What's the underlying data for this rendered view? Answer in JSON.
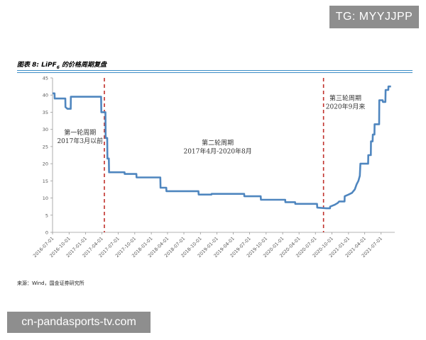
{
  "watermarks": {
    "top": "TG: MYYJJPP",
    "bottom": "cn-pandasports-tv.com"
  },
  "figure": {
    "title_prefix": "图表 8: LiPF",
    "title_sub": "6",
    "title_suffix": " 的价格周期复盘",
    "source": "来源：Wind，国金证券研究所"
  },
  "colors": {
    "line": "#4f86bf",
    "divider": "#c0302b",
    "rule": "#3c8dc6"
  },
  "chart_data": {
    "type": "line",
    "ylim": [
      0,
      45
    ],
    "yticks": [
      0,
      5,
      10,
      15,
      20,
      25,
      30,
      35,
      40,
      45
    ],
    "xlim": [
      "2016-07-01",
      "2021-09-15"
    ],
    "xticks": [
      "2016-07-01",
      "2016-10-01",
      "2017-01-01",
      "2017-04-01",
      "2017-07-01",
      "2017-10-01",
      "2018-01-01",
      "2018-04-01",
      "2018-07-01",
      "2018-10-01",
      "2019-01-01",
      "2019-04-01",
      "2019-07-01",
      "2019-10-01",
      "2020-01-01",
      "2020-04-01",
      "2020-07-01",
      "2020-10-01",
      "2021-01-01",
      "2021-04-01",
      "2021-07-01"
    ],
    "grid": false,
    "series": [
      {
        "points": [
          [
            "2016-07-01",
            40.5
          ],
          [
            "2016-07-12",
            40.5
          ],
          [
            "2016-07-13",
            39.0
          ],
          [
            "2016-09-10",
            39.0
          ],
          [
            "2016-09-11",
            36.5
          ],
          [
            "2016-09-22",
            36.0
          ],
          [
            "2016-10-10",
            36.0
          ],
          [
            "2016-10-11",
            39.5
          ],
          [
            "2017-03-28",
            39.5
          ],
          [
            "2017-03-29",
            35.0
          ],
          [
            "2017-04-21",
            35.0
          ],
          [
            "2017-04-22",
            27.5
          ],
          [
            "2017-05-01",
            27.5
          ],
          [
            "2017-05-02",
            21.5
          ],
          [
            "2017-05-10",
            21.5
          ],
          [
            "2017-05-11",
            17.5
          ],
          [
            "2017-08-05",
            17.5
          ],
          [
            "2017-08-06",
            17.0
          ],
          [
            "2017-10-10",
            17.0
          ],
          [
            "2017-10-11",
            16.0
          ],
          [
            "2018-02-20",
            16.0
          ],
          [
            "2018-02-21",
            13.0
          ],
          [
            "2018-03-25",
            13.0
          ],
          [
            "2018-03-26",
            12.0
          ],
          [
            "2018-09-20",
            12.0
          ],
          [
            "2018-09-21",
            11.0
          ],
          [
            "2018-12-01",
            11.0
          ],
          [
            "2018-12-02",
            11.2
          ],
          [
            "2019-06-01",
            11.2
          ],
          [
            "2019-06-02",
            10.5
          ],
          [
            "2019-09-01",
            10.5
          ],
          [
            "2019-09-02",
            9.5
          ],
          [
            "2020-01-15",
            9.5
          ],
          [
            "2020-01-16",
            8.8
          ],
          [
            "2020-03-10",
            8.8
          ],
          [
            "2020-03-11",
            8.3
          ],
          [
            "2020-07-10",
            8.3
          ],
          [
            "2020-07-11",
            7.2
          ],
          [
            "2020-09-01",
            7.0
          ],
          [
            "2020-09-20",
            7.0
          ],
          [
            "2020-09-21",
            7.5
          ],
          [
            "2020-10-15",
            8.0
          ],
          [
            "2020-11-01",
            8.5
          ],
          [
            "2020-11-10",
            9.0
          ],
          [
            "2020-12-10",
            9.0
          ],
          [
            "2020-12-11",
            10.5
          ],
          [
            "2021-01-01",
            11.0
          ],
          [
            "2021-01-20",
            11.5
          ],
          [
            "2021-02-05",
            12.5
          ],
          [
            "2021-02-15",
            14.0
          ],
          [
            "2021-02-25",
            15.0
          ],
          [
            "2021-03-05",
            16.5
          ],
          [
            "2021-03-08",
            20.0
          ],
          [
            "2021-04-20",
            20.0
          ],
          [
            "2021-04-21",
            22.5
          ],
          [
            "2021-05-05",
            22.5
          ],
          [
            "2021-05-06",
            26.5
          ],
          [
            "2021-05-15",
            26.5
          ],
          [
            "2021-05-16",
            28.5
          ],
          [
            "2021-05-25",
            28.5
          ],
          [
            "2021-05-26",
            31.5
          ],
          [
            "2021-06-20",
            31.5
          ],
          [
            "2021-06-21",
            38.5
          ],
          [
            "2021-07-10",
            38.5
          ],
          [
            "2021-07-11",
            38.0
          ],
          [
            "2021-07-25",
            38.0
          ],
          [
            "2021-07-26",
            41.5
          ],
          [
            "2021-08-10",
            41.5
          ],
          [
            "2021-08-11",
            42.5
          ],
          [
            "2021-08-25",
            42.5
          ]
        ]
      }
    ],
    "dividers": [
      "2017-04-15",
      "2020-08-15"
    ],
    "annotations": [
      {
        "lines": [
          "第一轮周期",
          "2017年3月以前"
        ],
        "x": "2016-12-01",
        "y": 28.5
      },
      {
        "lines": [
          "第二轮周期",
          "2017年4月-2020年8月"
        ],
        "x": "2019-01-05",
        "y": 25.5
      },
      {
        "lines": [
          "第三轮周期",
          "2020年9月来"
        ],
        "x": "2020-12-15",
        "y": 38.5
      }
    ]
  }
}
